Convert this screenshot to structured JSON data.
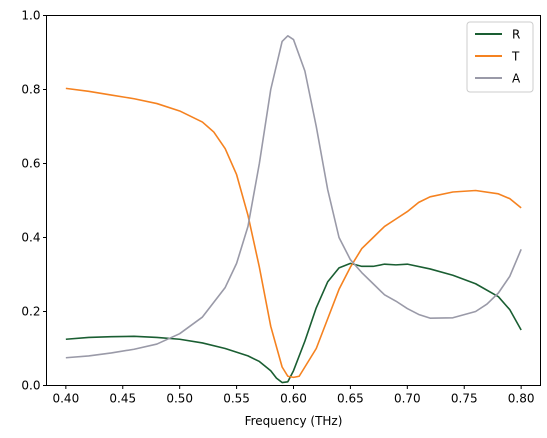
{
  "chart_data": {
    "type": "line",
    "title": "",
    "xlabel": "Frequency (THz)",
    "ylabel": "",
    "xlim": [
      0.383,
      0.817
    ],
    "ylim": [
      0.0,
      1.0
    ],
    "xticks": [
      0.4,
      0.45,
      0.5,
      0.55,
      0.6,
      0.65,
      0.7,
      0.75,
      0.8
    ],
    "xtick_labels": [
      "0.40",
      "0.45",
      "0.50",
      "0.55",
      "0.60",
      "0.65",
      "0.70",
      "0.75",
      "0.80"
    ],
    "yticks": [
      0.0,
      0.2,
      0.4,
      0.6,
      0.8,
      1.0
    ],
    "ytick_labels": [
      "0.0",
      "0.2",
      "0.4",
      "0.6",
      "0.8",
      "1.0"
    ],
    "grid": false,
    "legend_position": "top-right",
    "series": [
      {
        "name": "R",
        "color": "#1a5e32",
        "points": [
          [
            0.4,
            0.125
          ],
          [
            0.42,
            0.13
          ],
          [
            0.44,
            0.132
          ],
          [
            0.46,
            0.133
          ],
          [
            0.48,
            0.13
          ],
          [
            0.5,
            0.125
          ],
          [
            0.52,
            0.115
          ],
          [
            0.54,
            0.1
          ],
          [
            0.56,
            0.08
          ],
          [
            0.57,
            0.065
          ],
          [
            0.58,
            0.04
          ],
          [
            0.585,
            0.02
          ],
          [
            0.59,
            0.008
          ],
          [
            0.595,
            0.01
          ],
          [
            0.6,
            0.04
          ],
          [
            0.61,
            0.12
          ],
          [
            0.62,
            0.21
          ],
          [
            0.63,
            0.28
          ],
          [
            0.64,
            0.318
          ],
          [
            0.65,
            0.33
          ],
          [
            0.66,
            0.322
          ],
          [
            0.67,
            0.322
          ],
          [
            0.68,
            0.328
          ],
          [
            0.69,
            0.326
          ],
          [
            0.7,
            0.328
          ],
          [
            0.72,
            0.315
          ],
          [
            0.74,
            0.298
          ],
          [
            0.76,
            0.275
          ],
          [
            0.78,
            0.24
          ],
          [
            0.79,
            0.205
          ],
          [
            0.8,
            0.15
          ]
        ]
      },
      {
        "name": "T",
        "color": "#f58220",
        "points": [
          [
            0.4,
            0.803
          ],
          [
            0.42,
            0.795
          ],
          [
            0.44,
            0.785
          ],
          [
            0.46,
            0.775
          ],
          [
            0.48,
            0.762
          ],
          [
            0.5,
            0.742
          ],
          [
            0.52,
            0.712
          ],
          [
            0.53,
            0.685
          ],
          [
            0.54,
            0.64
          ],
          [
            0.55,
            0.57
          ],
          [
            0.56,
            0.46
          ],
          [
            0.57,
            0.32
          ],
          [
            0.58,
            0.16
          ],
          [
            0.59,
            0.05
          ],
          [
            0.595,
            0.025
          ],
          [
            0.6,
            0.022
          ],
          [
            0.605,
            0.025
          ],
          [
            0.61,
            0.05
          ],
          [
            0.62,
            0.1
          ],
          [
            0.63,
            0.18
          ],
          [
            0.64,
            0.26
          ],
          [
            0.65,
            0.32
          ],
          [
            0.66,
            0.37
          ],
          [
            0.67,
            0.4
          ],
          [
            0.68,
            0.43
          ],
          [
            0.69,
            0.45
          ],
          [
            0.7,
            0.47
          ],
          [
            0.71,
            0.495
          ],
          [
            0.72,
            0.51
          ],
          [
            0.74,
            0.523
          ],
          [
            0.76,
            0.527
          ],
          [
            0.78,
            0.518
          ],
          [
            0.79,
            0.505
          ],
          [
            0.8,
            0.48
          ]
        ]
      },
      {
        "name": "A",
        "color": "#9a9aa8",
        "points": [
          [
            0.4,
            0.075
          ],
          [
            0.42,
            0.08
          ],
          [
            0.44,
            0.088
          ],
          [
            0.46,
            0.098
          ],
          [
            0.48,
            0.112
          ],
          [
            0.5,
            0.14
          ],
          [
            0.52,
            0.185
          ],
          [
            0.54,
            0.265
          ],
          [
            0.55,
            0.33
          ],
          [
            0.56,
            0.43
          ],
          [
            0.57,
            0.6
          ],
          [
            0.58,
            0.8
          ],
          [
            0.59,
            0.93
          ],
          [
            0.595,
            0.945
          ],
          [
            0.6,
            0.935
          ],
          [
            0.61,
            0.85
          ],
          [
            0.62,
            0.7
          ],
          [
            0.63,
            0.53
          ],
          [
            0.64,
            0.4
          ],
          [
            0.65,
            0.34
          ],
          [
            0.66,
            0.305
          ],
          [
            0.67,
            0.275
          ],
          [
            0.68,
            0.245
          ],
          [
            0.69,
            0.228
          ],
          [
            0.7,
            0.208
          ],
          [
            0.71,
            0.192
          ],
          [
            0.72,
            0.182
          ],
          [
            0.74,
            0.183
          ],
          [
            0.76,
            0.2
          ],
          [
            0.77,
            0.22
          ],
          [
            0.78,
            0.25
          ],
          [
            0.79,
            0.295
          ],
          [
            0.8,
            0.368
          ]
        ]
      }
    ]
  }
}
